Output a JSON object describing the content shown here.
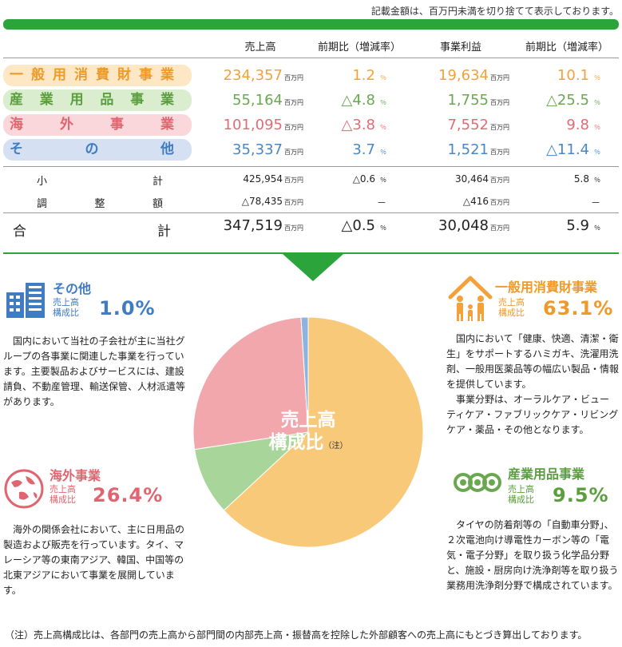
{
  "note_top": "記載金額は、百万円未満を切り捨てて表示しております。",
  "colors": {
    "green": "#2aa43b",
    "orange": "#f4a13a",
    "green2": "#6aa84f",
    "red": "#e06c75",
    "blue": "#4a86c8"
  },
  "headers": [
    "売上高",
    "前期比（増減率）",
    "事業利益",
    "前期比（増減率）"
  ],
  "unit_million": "百万円",
  "unit_pct": "％",
  "segments": [
    {
      "name": "一般用消費財事業",
      "sales": "234,357",
      "sales_yoy": "1.2",
      "profit": "19,634",
      "profit_yoy": "10.1"
    },
    {
      "name": "産業用品事業",
      "sales": "55,164",
      "sales_yoy": "△4.8",
      "profit": "1,755",
      "profit_yoy": "△25.5"
    },
    {
      "name": "海外事業",
      "sales": "101,095",
      "sales_yoy": "△3.8",
      "profit": "7,552",
      "profit_yoy": "9.8"
    },
    {
      "name": "その他",
      "sales": "35,337",
      "sales_yoy": "3.7",
      "profit": "1,521",
      "profit_yoy": "△11.4"
    }
  ],
  "subtotal": {
    "label": "小計",
    "sales": "425,954",
    "sales_yoy": "△0.6",
    "profit": "30,464",
    "profit_yoy": "5.8"
  },
  "adjust": {
    "label": "調整額",
    "sales": "△78,435",
    "sales_yoy": "－",
    "profit": "△416",
    "profit_yoy": "－"
  },
  "total": {
    "label": "合計",
    "sales": "347,519",
    "sales_yoy": "△0.5",
    "profit": "30,048",
    "profit_yoy": "5.9"
  },
  "ratio_label": "売上高\n構成比",
  "pie_center": {
    "line1": "売上高",
    "line2": "構成比",
    "note": "（注）"
  },
  "chart_data": {
    "type": "pie",
    "labels": [
      "一般用消費財事業",
      "産業用品事業",
      "海外事業",
      "その他"
    ],
    "values": [
      63.1,
      9.5,
      26.4,
      1.0
    ],
    "colors": [
      "#f9c97a",
      "#a8d69a",
      "#f2a7ad",
      "#8fb3df"
    ]
  },
  "sections": {
    "other": {
      "title": "その他",
      "ratio": "1.0%",
      "text": "国内において当社の子会社が主に当社グループの各事業に関連した事業を行っています。主要製品およびサービスには、建設請負、不動産管理、輸送保管、人材派遣等があります。"
    },
    "consumer": {
      "title": "一般用消費財事業",
      "ratio": "63.1%",
      "text1": "国内において「健康、快適、清潔・衛生」をサポートするハミガキ、洗濯用洗剤、一般用医薬品等の幅広い製品・情報を提供しています。",
      "text2": "事業分野は、オーラルケア・ビューティケア・ファブリックケア・リビングケア・薬品・その他となります。"
    },
    "overseas": {
      "title": "海外事業",
      "ratio": "26.4%",
      "text": "海外の関係会社において、主に日用品の製造および販売を行っています。タイ、マレーシア等の東南アジア、韓国、中国等の北東アジアにおいて事業を展開しています。"
    },
    "industrial": {
      "title": "産業用品事業",
      "ratio": "9.5%",
      "text": "タイヤの防着剤等の「自動車分野」、２次電池向け導電性カーボン等の「電気・電子分野」を取り扱う化学品分野と、施設・厨房向け洗浄剤等を取り扱う業務用洗浄剤分野で構成されています。"
    }
  },
  "footnote": "（注）売上高構成比は、各部門の売上高から部門間の内部売上高・振替高を控除した外部顧客への売上高にもとづき算出しております。"
}
